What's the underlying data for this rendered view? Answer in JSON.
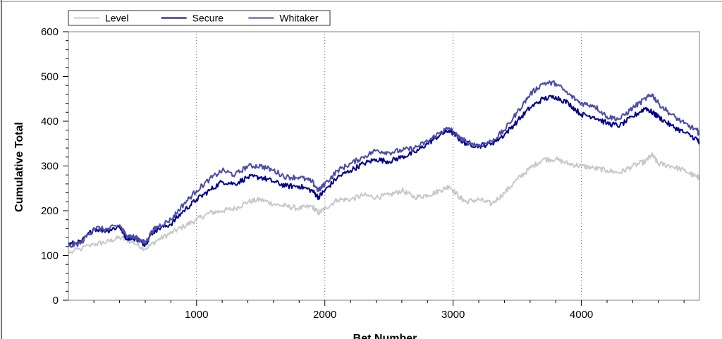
{
  "chart_data": {
    "type": "line",
    "xlabel": "Bet Number",
    "ylabel": "Cumulative Total",
    "xlim": [
      1,
      4920
    ],
    "ylim": [
      0,
      600
    ],
    "xticks": [
      1000,
      2000,
      3000,
      4000
    ],
    "yticks": [
      0,
      100,
      200,
      300,
      400,
      500,
      600
    ],
    "x_grid": "dotted vertical at major ticks",
    "legend_position": "top-left",
    "series": [
      {
        "name": "Level",
        "color": "#c8c8c8",
        "x": [
          1,
          200,
          300,
          400,
          500,
          600,
          700,
          800,
          900,
          1000,
          1100,
          1200,
          1300,
          1400,
          1500,
          1600,
          1700,
          1800,
          1900,
          1950,
          2000,
          2100,
          2200,
          2300,
          2400,
          2500,
          2600,
          2700,
          2800,
          2900,
          2970,
          3050,
          3100,
          3200,
          3300,
          3400,
          3500,
          3600,
          3700,
          3800,
          3900,
          4000,
          4100,
          4200,
          4300,
          4400,
          4500,
          4550,
          4600,
          4700,
          4800,
          4900,
          4920
        ],
        "y": [
          105,
          125,
          130,
          140,
          130,
          115,
          135,
          150,
          165,
          180,
          195,
          200,
          205,
          220,
          225,
          215,
          210,
          205,
          210,
          195,
          205,
          225,
          225,
          235,
          230,
          235,
          245,
          230,
          235,
          245,
          255,
          230,
          220,
          225,
          215,
          240,
          270,
          295,
          315,
          315,
          305,
          300,
          295,
          290,
          285,
          300,
          310,
          325,
          305,
          300,
          290,
          275,
          275
        ]
      },
      {
        "name": "Secure",
        "color": "#00008b",
        "x": [
          1,
          100,
          200,
          300,
          400,
          450,
          500,
          550,
          600,
          650,
          700,
          800,
          900,
          1000,
          1100,
          1200,
          1300,
          1400,
          1500,
          1600,
          1700,
          1800,
          1900,
          1950,
          2000,
          2100,
          2200,
          2300,
          2400,
          2500,
          2600,
          2700,
          2800,
          2900,
          2970,
          3050,
          3100,
          3200,
          3300,
          3400,
          3500,
          3600,
          3700,
          3800,
          3900,
          4000,
          4100,
          4200,
          4300,
          4400,
          4500,
          4550,
          4600,
          4700,
          4800,
          4900,
          4920
        ],
        "y": [
          125,
          130,
          160,
          155,
          165,
          140,
          140,
          135,
          125,
          150,
          160,
          170,
          200,
          225,
          245,
          265,
          260,
          275,
          275,
          265,
          255,
          255,
          245,
          230,
          245,
          275,
          290,
          305,
          315,
          310,
          320,
          330,
          350,
          370,
          380,
          360,
          350,
          345,
          350,
          370,
          400,
          430,
          450,
          455,
          440,
          415,
          410,
          395,
          390,
          410,
          430,
          420,
          410,
          390,
          375,
          360,
          350
        ]
      },
      {
        "name": "Whitaker",
        "color": "#4b4ba8",
        "x": [
          1,
          100,
          200,
          300,
          400,
          450,
          500,
          550,
          600,
          650,
          700,
          800,
          900,
          1000,
          1100,
          1200,
          1300,
          1400,
          1500,
          1600,
          1700,
          1800,
          1900,
          1950,
          2000,
          2100,
          2200,
          2300,
          2400,
          2500,
          2600,
          2700,
          2800,
          2900,
          2970,
          3050,
          3100,
          3200,
          3300,
          3400,
          3500,
          3600,
          3700,
          3800,
          3900,
          4000,
          4100,
          4200,
          4300,
          4400,
          4500,
          4550,
          4600,
          4700,
          4800,
          4900,
          4920
        ],
        "y": [
          120,
          128,
          162,
          158,
          168,
          145,
          142,
          137,
          127,
          153,
          165,
          180,
          215,
          245,
          270,
          290,
          280,
          300,
          300,
          290,
          275,
          275,
          265,
          245,
          260,
          290,
          305,
          320,
          335,
          330,
          335,
          340,
          355,
          375,
          385,
          362,
          355,
          345,
          355,
          380,
          420,
          460,
          485,
          485,
          460,
          440,
          435,
          410,
          405,
          430,
          450,
          460,
          440,
          415,
          395,
          380,
          370
        ]
      }
    ]
  }
}
